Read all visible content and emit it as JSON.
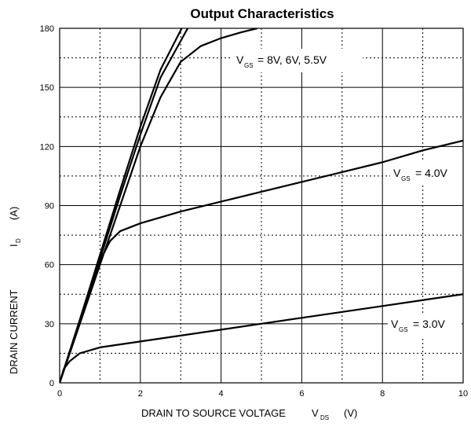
{
  "chart_data": {
    "type": "line",
    "title": "Output Characteristics",
    "xlabel": "DRAIN TO SOURCE VOLTAGE",
    "xlabel_symbol": {
      "main": "V",
      "sub": "DS",
      "unit": "(V)"
    },
    "ylabel": "DRAIN CURRENT",
    "ylabel_symbol": {
      "main": "I",
      "sub": "D",
      "unit": "(A)"
    },
    "xlim": [
      0,
      10
    ],
    "ylim": [
      0,
      180
    ],
    "x_ticks": [
      0,
      2,
      4,
      6,
      8,
      10
    ],
    "y_ticks": [
      0,
      30,
      60,
      90,
      120,
      150,
      180
    ],
    "grid": {
      "major": "solid",
      "minor": "dotted"
    },
    "series": [
      {
        "vgs": "8V",
        "x": [
          0,
          0.5,
          1,
          1.5,
          2,
          2.5,
          3.05
        ],
        "y": [
          0,
          32,
          65,
          98,
          130,
          159,
          181
        ]
      },
      {
        "vgs": "6V",
        "x": [
          0,
          0.5,
          1,
          1.5,
          2,
          2.5,
          3.2
        ],
        "y": [
          0,
          31,
          63,
          95,
          126,
          155,
          181
        ]
      },
      {
        "vgs": "5.5V",
        "x": [
          0,
          0.5,
          1,
          1.5,
          2,
          2.5,
          3,
          3.5,
          4,
          4.5,
          4.9
        ],
        "y": [
          0,
          30,
          60,
          90,
          120,
          145,
          163,
          171,
          175,
          178,
          180
        ]
      },
      {
        "vgs": "4.0V",
        "x": [
          0,
          0.25,
          0.5,
          0.75,
          1,
          1.25,
          1.5,
          2,
          3,
          4,
          5,
          6,
          7,
          8,
          9,
          10
        ],
        "y": [
          0,
          16,
          32,
          48,
          62,
          72,
          77,
          81,
          87,
          92,
          97,
          102,
          107,
          112,
          118,
          123
        ]
      },
      {
        "vgs": "3.0V",
        "x": [
          0,
          0.1,
          0.25,
          0.5,
          1,
          2,
          3,
          4,
          5,
          6,
          7,
          8,
          9,
          10
        ],
        "y": [
          0,
          7,
          11,
          15,
          18,
          21,
          24,
          27,
          30,
          33,
          36,
          39,
          42,
          45
        ]
      }
    ],
    "annotations": [
      {
        "id": "vgs_high",
        "main": "V",
        "sub": "GS",
        "value": "= 8V, 6V, 5.5V"
      },
      {
        "id": "vgs_4",
        "main": "V",
        "sub": "GS",
        "value": "= 4.0V"
      },
      {
        "id": "vgs_3",
        "main": "V",
        "sub": "GS",
        "value": "= 3.0V"
      }
    ],
    "colors": {
      "curve": "#000000",
      "grid": "#000000",
      "background": "#ffffff"
    }
  }
}
